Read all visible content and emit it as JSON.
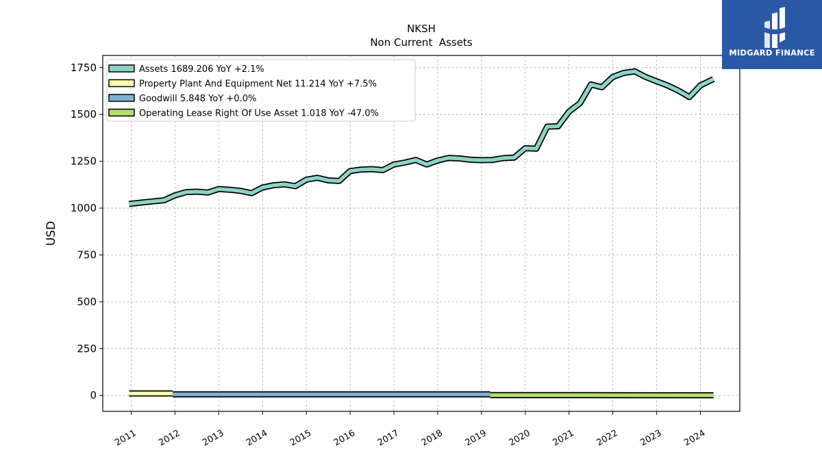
{
  "chart_data": {
    "type": "line",
    "title": "NKSH",
    "subtitle": "Non Current  Assets",
    "ylabel": "USD",
    "xlabel": "",
    "ylim": [
      -85,
      1815
    ],
    "xlim": [
      2010.35,
      2024.9
    ],
    "y_ticks": [
      0,
      250,
      500,
      750,
      1000,
      1250,
      1500,
      1750
    ],
    "x_ticks": [
      2011,
      2012,
      2013,
      2014,
      2015,
      2016,
      2017,
      2018,
      2019,
      2020,
      2021,
      2022,
      2023,
      2024
    ],
    "grid": true,
    "legend_position": "top-left",
    "series": [
      {
        "name": "Assets",
        "legend": "Assets  1689.206 YoY +2.1%",
        "color": "#8dd3c7",
        "points": [
          [
            2010.95,
            1022
          ],
          [
            2011.25,
            1030
          ],
          [
            2011.5,
            1036
          ],
          [
            2011.75,
            1042
          ],
          [
            2012.0,
            1068
          ],
          [
            2012.25,
            1085
          ],
          [
            2012.5,
            1088
          ],
          [
            2012.75,
            1083
          ],
          [
            2013.0,
            1102
          ],
          [
            2013.25,
            1098
          ],
          [
            2013.5,
            1092
          ],
          [
            2013.75,
            1080
          ],
          [
            2014.0,
            1110
          ],
          [
            2014.25,
            1122
          ],
          [
            2014.5,
            1127
          ],
          [
            2014.75,
            1117
          ],
          [
            2015.0,
            1152
          ],
          [
            2015.25,
            1162
          ],
          [
            2015.5,
            1148
          ],
          [
            2015.75,
            1145
          ],
          [
            2016.0,
            1198
          ],
          [
            2016.25,
            1206
          ],
          [
            2016.5,
            1208
          ],
          [
            2016.75,
            1203
          ],
          [
            2017.0,
            1233
          ],
          [
            2017.25,
            1243
          ],
          [
            2017.5,
            1257
          ],
          [
            2017.75,
            1233
          ],
          [
            2018.0,
            1254
          ],
          [
            2018.25,
            1268
          ],
          [
            2018.5,
            1265
          ],
          [
            2018.75,
            1258
          ],
          [
            2019.0,
            1256
          ],
          [
            2019.25,
            1257
          ],
          [
            2019.5,
            1267
          ],
          [
            2019.75,
            1270
          ],
          [
            2020.0,
            1320
          ],
          [
            2020.25,
            1317
          ],
          [
            2020.5,
            1435
          ],
          [
            2020.75,
            1437
          ],
          [
            2021.0,
            1515
          ],
          [
            2021.25,
            1560
          ],
          [
            2021.5,
            1660
          ],
          [
            2021.75,
            1645
          ],
          [
            2022.0,
            1700
          ],
          [
            2022.25,
            1722
          ],
          [
            2022.5,
            1730
          ],
          [
            2022.75,
            1700
          ],
          [
            2023.0,
            1677
          ],
          [
            2023.25,
            1655
          ],
          [
            2023.5,
            1627
          ],
          [
            2023.75,
            1593
          ],
          [
            2024.0,
            1655
          ],
          [
            2024.3,
            1689
          ]
        ]
      },
      {
        "name": "Property Plant And Equipment Net",
        "legend": "Property Plant And Equipment Net  11.214 YoY +7.5%",
        "color": "#ffffb3",
        "points": [
          [
            2010.95,
            10.5
          ],
          [
            2011.5,
            10.4
          ],
          [
            2011.95,
            10.3
          ]
        ]
      },
      {
        "name": "Goodwill",
        "legend": "Goodwill  5.848 YoY +0.0%",
        "color": "#80b1d3",
        "points": [
          [
            2011.95,
            5.85
          ],
          [
            2015.5,
            5.85
          ],
          [
            2019.2,
            5.85
          ]
        ]
      },
      {
        "name": "Operating Lease Right Of Use Asset",
        "legend": "Operating Lease Right Of Use Asset  1.018 YoY -47.0%",
        "color": "#b3de69",
        "points": [
          [
            2019.2,
            1.9
          ],
          [
            2021.5,
            1.6
          ],
          [
            2024.3,
            1.02
          ]
        ]
      }
    ]
  },
  "logo": {
    "text": "MIDGARD FINANCE",
    "icon": "midgard-finance-logo-icon",
    "background": "#2b57a7"
  }
}
